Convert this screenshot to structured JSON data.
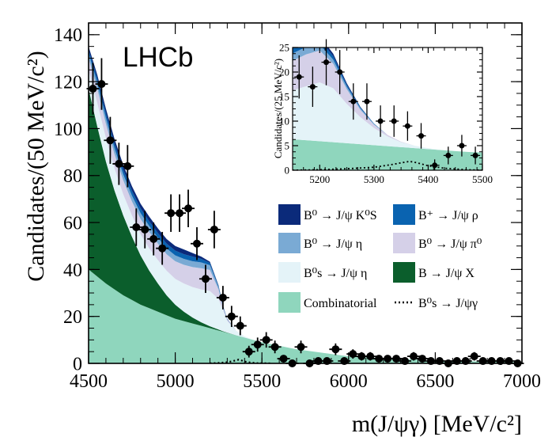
{
  "chart_data": {
    "type": "area",
    "experiment_label": "LHCb",
    "xlabel": "m(J/ψγ) [MeV/c²]",
    "ylabel": "Candidates/(50 MeV/c²)",
    "xlim": [
      4500,
      7000
    ],
    "ylim": [
      0,
      145
    ],
    "x_ticks": [
      "4500",
      "5000",
      "5500",
      "6000",
      "6500",
      "7000"
    ],
    "y_ticks": [
      "0",
      "20",
      "40",
      "60",
      "80",
      "100",
      "120",
      "140"
    ],
    "grid": false,
    "legend_position": "right",
    "legend": [
      {
        "label": "B⁰ → J/ψ K⁰S",
        "color": "#0b2a7a",
        "type": "fill"
      },
      {
        "label": "B⁺ → J/ψ ρ",
        "color": "#0a63b0",
        "type": "fill"
      },
      {
        "label": "B⁰ → J/ψ η",
        "color": "#7aaad4",
        "type": "fill"
      },
      {
        "label": "B⁰ → J/ψ π⁰",
        "color": "#d5d0e8",
        "type": "fill"
      },
      {
        "label": "B⁰s → J/ψ η",
        "color": "#e4f3f8",
        "type": "fill"
      },
      {
        "label": "B → J/ψ X",
        "color": "#0b5e2c",
        "type": "fill"
      },
      {
        "label": "Combinatorial",
        "color": "#8fd6bd",
        "type": "fill"
      },
      {
        "label": "B⁰s → J/ψγ",
        "color": "#000000",
        "type": "dotted-line"
      }
    ],
    "stack_x": [
      4500,
      4550,
      4600,
      4650,
      4700,
      4750,
      4800,
      4850,
      4900,
      4950,
      5000,
      5050,
      5100,
      5150,
      5200,
      5250,
      5275,
      5300,
      5350,
      5400,
      5450,
      5500,
      5600,
      5700,
      6000,
      6500,
      7000
    ],
    "series": [
      {
        "name": "Combinatorial",
        "values": [
          40,
          37,
          34,
          31.5,
          29,
          27,
          25,
          23.5,
          22,
          20.5,
          19,
          18,
          17,
          16,
          15,
          14,
          13.5,
          13,
          12,
          11,
          10,
          9,
          7.5,
          6,
          3,
          1.2,
          0.5
        ]
      },
      {
        "name": "B → J/ψ X",
        "values": [
          77,
          64,
          52,
          42,
          34,
          27,
          21,
          16,
          12,
          8.5,
          6,
          4,
          2.5,
          1.5,
          0.8,
          0.4,
          0.2,
          0.1,
          0,
          0,
          0,
          0,
          0,
          0,
          0,
          0,
          0
        ]
      },
      {
        "name": "B⁰s → J/ψ η",
        "values": [
          8,
          10,
          10,
          9.5,
          9,
          9,
          9,
          9.5,
          10,
          10.5,
          11,
          12,
          13,
          14,
          15,
          13,
          9,
          5,
          2,
          0.5,
          0,
          0,
          0,
          0,
          0,
          0,
          0
        ]
      },
      {
        "name": "B⁰ → J/ψ π⁰",
        "values": [
          5,
          6,
          6,
          6,
          6,
          6,
          6.5,
          7,
          7,
          7,
          7.5,
          8,
          8.5,
          9,
          9,
          4,
          1,
          0.5,
          0,
          0,
          0,
          0,
          0,
          0,
          0,
          0,
          0
        ]
      },
      {
        "name": "B⁰ → J/ψ η",
        "values": [
          2,
          2.5,
          2.5,
          2.5,
          2.5,
          2.5,
          2.5,
          2.5,
          2.5,
          2.5,
          2.5,
          2.5,
          2.5,
          2.5,
          2,
          1,
          0.5,
          0.2,
          0,
          0,
          0,
          0,
          0,
          0,
          0,
          0,
          0
        ]
      },
      {
        "name": "B⁺ → J/ψ ρ",
        "values": [
          1.5,
          2,
          2,
          2,
          2,
          2,
          2,
          2,
          2,
          2,
          2,
          2,
          2,
          1.5,
          1,
          0.5,
          0.3,
          0.1,
          0,
          0,
          0,
          0,
          0,
          0,
          0,
          0,
          0
        ]
      },
      {
        "name": "B⁰ → J/ψ K⁰S",
        "values": [
          1.5,
          1.5,
          2,
          2,
          2,
          2,
          2,
          2,
          2,
          2,
          2,
          2,
          1.5,
          1,
          0.5,
          0.3,
          0.2,
          0.1,
          0,
          0,
          0,
          0,
          0,
          0,
          0,
          0,
          0
        ]
      }
    ],
    "signal_curve": {
      "name": "B⁰s → J/ψγ",
      "x": [
        5200,
        5250,
        5300,
        5330,
        5350,
        5366,
        5380,
        5400,
        5430,
        5470,
        5550
      ],
      "y": [
        0,
        0.2,
        0.5,
        0.9,
        1.3,
        1.6,
        1.3,
        0.8,
        0.4,
        0.1,
        0
      ]
    },
    "data_points": {
      "x": [
        4525,
        4575,
        4625,
        4675,
        4725,
        4775,
        4825,
        4875,
        4925,
        4975,
        5025,
        5075,
        5125,
        5175,
        5225,
        5275,
        5325,
        5375,
        5425,
        5475,
        5525,
        5575,
        5625,
        5675,
        5725,
        5775,
        5825,
        5875,
        5925,
        5975,
        6025,
        6075,
        6125,
        6175,
        6225,
        6275,
        6325,
        6375,
        6425,
        6475,
        6525,
        6575,
        6625,
        6675,
        6725,
        6775,
        6825,
        6875,
        6925,
        6975
      ],
      "y": [
        117,
        119,
        95,
        85,
        84,
        58,
        57,
        53,
        49,
        64,
        64,
        66,
        51,
        36,
        57,
        28,
        20,
        16,
        5,
        8,
        10,
        7,
        2,
        0,
        7,
        0,
        1,
        1,
        6,
        1,
        4,
        3,
        3,
        2,
        2,
        2,
        1,
        3,
        2,
        1,
        1,
        0,
        1,
        1,
        3,
        1,
        1,
        1,
        1,
        0
      ],
      "err": [
        11,
        11,
        10,
        9,
        9,
        8,
        8,
        7,
        7,
        8,
        8,
        8,
        7,
        6,
        8,
        5,
        4.5,
        4,
        2.5,
        3,
        3.3,
        2.7,
        1.5,
        1,
        2.7,
        1,
        1.2,
        1.2,
        2.5,
        1.2,
        2,
        1.8,
        1.8,
        1.5,
        1.5,
        1.5,
        1.2,
        1.8,
        1.5,
        1.2,
        1.2,
        1,
        1.2,
        1.2,
        1.8,
        1.2,
        1.2,
        1.2,
        1.2,
        1
      ]
    },
    "inset": {
      "type": "area",
      "ylabel": "Candidates/(25 MeV/c²)",
      "xlim": [
        5150,
        5500
      ],
      "ylim": [
        0,
        25
      ],
      "x_ticks": [
        "5200",
        "5300",
        "5400",
        "5500"
      ],
      "y_ticks": [
        "0",
        "5",
        "10",
        "15",
        "20",
        "25"
      ],
      "stack_x": [
        5150,
        5175,
        5200,
        5225,
        5250,
        5275,
        5300,
        5325,
        5350,
        5375,
        5400,
        5425,
        5450,
        5475,
        5500
      ],
      "series": [
        {
          "name": "Combinatorial",
          "values": [
            6.3,
            6.1,
            5.9,
            5.7,
            5.5,
            5.3,
            5.1,
            4.9,
            4.7,
            4.5,
            4.3,
            4.1,
            3.9,
            3.7,
            3.6
          ]
        },
        {
          "name": "B⁰s → J/ψ η",
          "values": [
            10,
            11,
            12,
            11,
            8,
            5.5,
            3.5,
            2,
            1,
            0.5,
            0.2,
            0,
            0,
            0,
            0
          ]
        },
        {
          "name": "B⁰ → J/ψ π⁰",
          "values": [
            6,
            6.5,
            6.5,
            5,
            3,
            1.5,
            0.7,
            0.3,
            0.1,
            0,
            0,
            0,
            0,
            0,
            0
          ]
        },
        {
          "name": "B⁰ → J/ψ η",
          "values": [
            1.5,
            1.5,
            1.2,
            0.8,
            0.5,
            0.3,
            0.1,
            0,
            0,
            0,
            0,
            0,
            0,
            0,
            0
          ]
        },
        {
          "name": "B⁺ → J/ψ ρ",
          "values": [
            1.2,
            1.2,
            1,
            0.7,
            0.4,
            0.2,
            0.1,
            0,
            0,
            0,
            0,
            0,
            0,
            0,
            0
          ]
        },
        {
          "name": "B⁰ → J/ψ K⁰S",
          "values": [
            1,
            1,
            0.8,
            0.5,
            0.3,
            0.1,
            0,
            0,
            0,
            0,
            0,
            0,
            0,
            0,
            0
          ]
        }
      ],
      "signal_curve": {
        "name": "B⁰s → J/ψγ",
        "x": [
          5150,
          5200,
          5250,
          5300,
          5330,
          5350,
          5366,
          5380,
          5400,
          5430,
          5470,
          5500
        ],
        "y": [
          0,
          0.1,
          0.3,
          0.6,
          1.1,
          1.5,
          1.8,
          1.5,
          0.9,
          0.4,
          0.1,
          0
        ]
      },
      "data_points": {
        "x": [
          5162,
          5187,
          5212,
          5237,
          5262,
          5287,
          5312,
          5337,
          5362,
          5387,
          5412,
          5437,
          5462,
          5487
        ],
        "y": [
          19,
          17,
          22,
          20,
          14,
          14,
          10,
          10,
          9,
          7,
          1,
          3,
          5,
          3
        ],
        "err": [
          4.4,
          4.1,
          4.7,
          4.5,
          3.7,
          3.7,
          3.2,
          3.2,
          3,
          2.6,
          1.2,
          1.8,
          2.2,
          1.8
        ]
      }
    }
  }
}
